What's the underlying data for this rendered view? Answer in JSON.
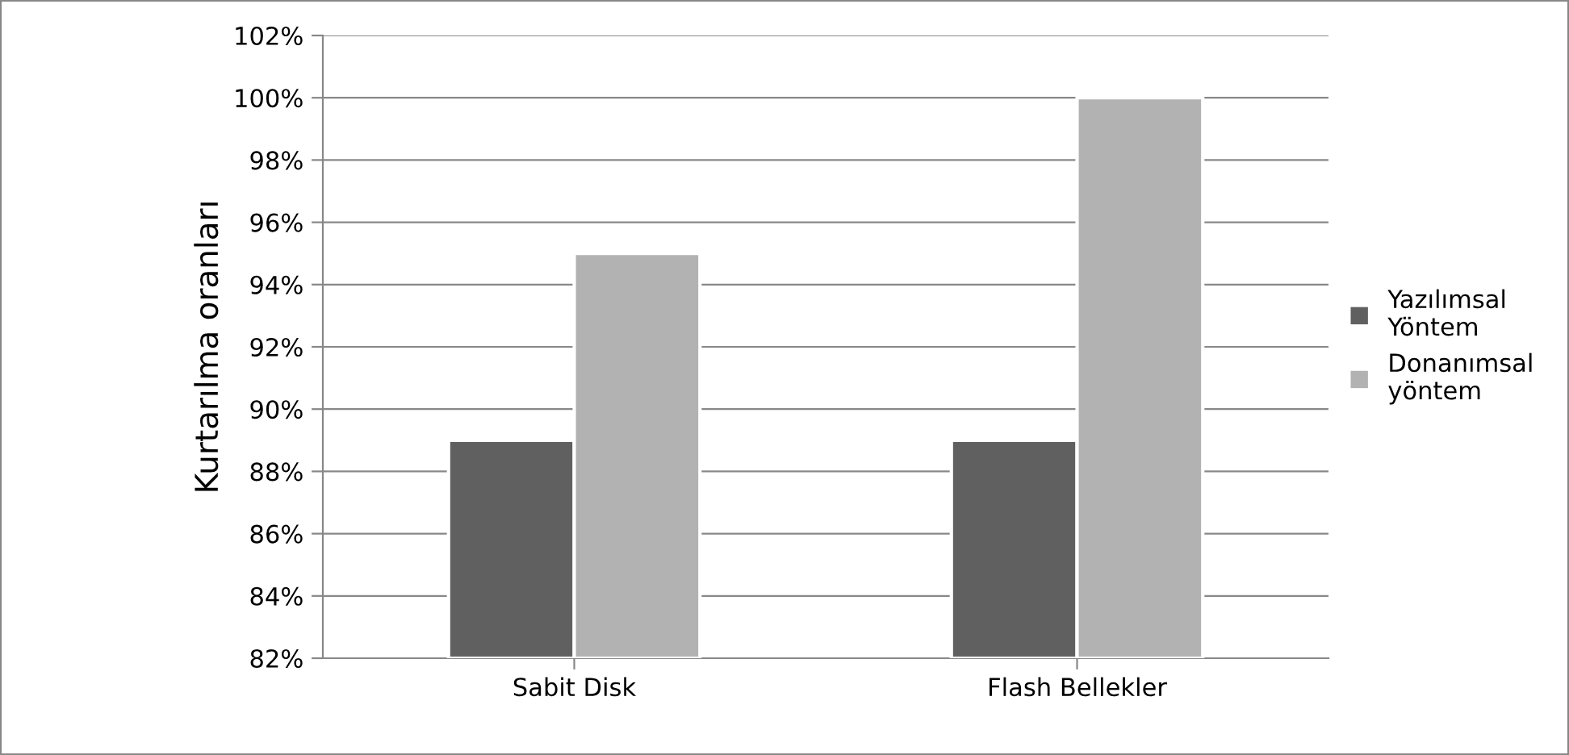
{
  "chart_data": {
    "type": "bar",
    "ylabel": "Kurtarılma oranları",
    "categories": [
      "Sabit Disk",
      "Flash Bellekler"
    ],
    "series": [
      {
        "name": "Yazılımsal\nYöntem",
        "color": "#606060",
        "values": [
          89,
          89
        ]
      },
      {
        "name": "Donanımsal\nyöntem",
        "color": "#b2b2b2",
        "values": [
          95,
          100
        ]
      }
    ],
    "ylim": [
      82,
      102
    ],
    "yticks": [
      {
        "value": 82,
        "label": "82%"
      },
      {
        "value": 84,
        "label": "84%"
      },
      {
        "value": 86,
        "label": "86%"
      },
      {
        "value": 88,
        "label": "88%"
      },
      {
        "value": 90,
        "label": "90%"
      },
      {
        "value": 92,
        "label": "92%"
      },
      {
        "value": 94,
        "label": "94%"
      },
      {
        "value": 96,
        "label": "96%"
      },
      {
        "value": 98,
        "label": "98%"
      },
      {
        "value": 100,
        "label": "100%"
      },
      {
        "value": 102,
        "label": "102%"
      }
    ],
    "grid": "y",
    "legend": "right"
  }
}
